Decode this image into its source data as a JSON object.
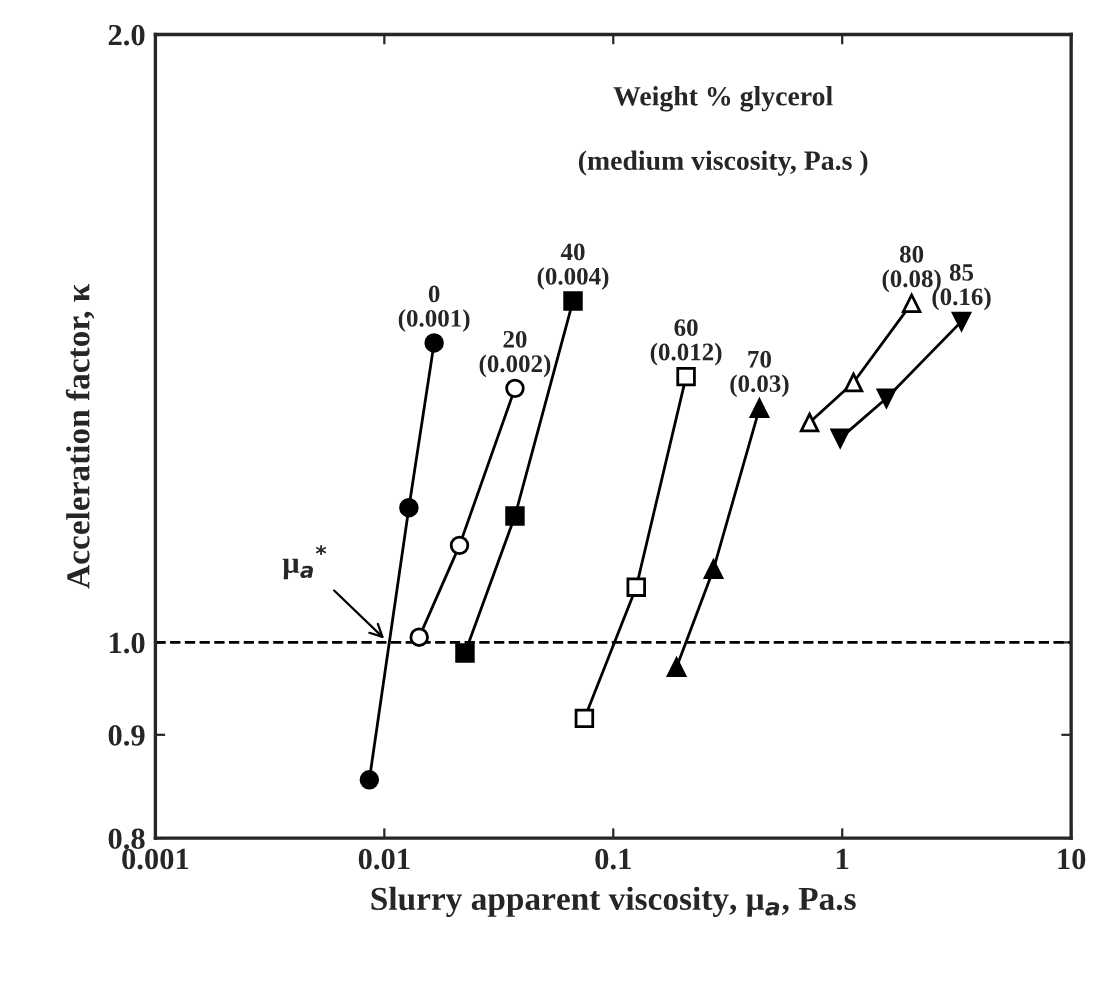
{
  "chart_data": {
    "type": "line",
    "xlabel": "Slurry apparent viscosity, μ$_{a}$, Pa.s",
    "ylabel": "Acceleration factor, κ",
    "log": "xy",
    "xlim": [
      0.001,
      10
    ],
    "xticks": [
      0.001,
      0.01,
      0.1,
      1,
      10
    ],
    "ylim": [
      0.8,
      2.0
    ],
    "yticks": [
      0.8,
      0.9,
      {
        "value": 1.0,
        "label": "1.0"
      },
      {
        "value": 2.0,
        "label": "2.0"
      }
    ],
    "grid": false,
    "legend": false,
    "line_style": "solid",
    "series": [
      {
        "name": "0\n(0.001)",
        "color": "#000000",
        "marker": "circle",
        "x": [
          0.0086,
          0.0128,
          0.0165
        ],
        "values": [
          0.855,
          1.166,
          1.407
        ]
      },
      {
        "name": "20\n(0.002)",
        "color": "#000000",
        "marker": "circle-open",
        "x": [
          0.0142,
          0.0213,
          0.0372
        ],
        "values": [
          1.006,
          1.117,
          1.336
        ]
      },
      {
        "name": "40\n(0.004)",
        "color": "#000000",
        "marker": "square",
        "x": [
          0.0225,
          0.0372,
          0.0667
        ],
        "values": [
          0.988,
          1.155,
          1.476
        ]
      },
      {
        "name": "60\n(0.012)",
        "color": "#000000",
        "marker": "square-open",
        "x": [
          0.0748,
          0.126,
          0.208
        ],
        "values": [
          0.917,
          1.065,
          1.354
        ]
      },
      {
        "name": "70\n(0.03)",
        "color": "#000000",
        "marker": "triangle",
        "x": [
          0.189,
          0.274,
          0.435
        ],
        "values": [
          0.972,
          1.087,
          1.306
        ]
      },
      {
        "name": "80\n(0.08)",
        "color": "#000000",
        "marker": "triangle-open",
        "x": [
          0.72,
          1.12,
          2.01
        ],
        "values": [
          1.285,
          1.345,
          1.472
        ]
      },
      {
        "name": "85\n(0.16)",
        "color": "#000000",
        "marker": "triangle-down",
        "x": [
          0.98,
          1.56,
          3.32
        ],
        "values": [
          1.262,
          1.321,
          1.442
        ]
      }
    ],
    "ref_lines": [
      {
        "axis": "y",
        "value": 1.0,
        "line_style": "dashed",
        "color": "#000000"
      }
    ],
    "annotations": [
      "Weight % glycerol",
      "(medium viscosity, Pa.s )",
      {
        "text": "μ$_{a}$$^{*}$",
        "x": 0.0104,
        "y": 1.0
      }
    ]
  }
}
